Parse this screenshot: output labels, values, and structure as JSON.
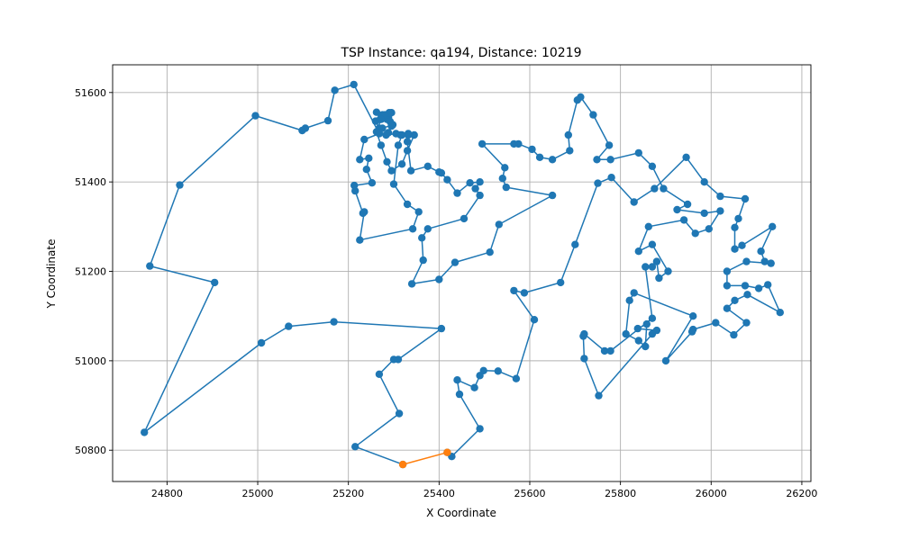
{
  "chart_data": {
    "type": "line",
    "title": "TSP Instance: qa194, Distance: 10219",
    "xlabel": "X Coordinate",
    "ylabel": "Y Coordinate",
    "xlim": [
      24680,
      26220
    ],
    "ylim": [
      50730,
      51662
    ],
    "xticks": [
      24800,
      25000,
      25200,
      25400,
      25600,
      25800,
      26000,
      26200
    ],
    "yticks": [
      50800,
      51000,
      51200,
      51400,
      51600
    ],
    "grid": true,
    "colors": {
      "tour": "#1f77b4",
      "closing": "#ff7f0e"
    },
    "series": [
      {
        "name": "",
        "color": "#1f77b4",
        "points": [
          [
            25418,
            50795
          ],
          [
            25428,
            50786
          ],
          [
            25490,
            50848
          ],
          [
            25445,
            50925
          ],
          [
            25440,
            50957
          ],
          [
            25478,
            50940
          ],
          [
            25490,
            50967
          ],
          [
            25498,
            50978
          ],
          [
            25530,
            50977
          ],
          [
            25570,
            50960
          ],
          [
            25610,
            51092
          ],
          [
            25565,
            51157
          ],
          [
            25588,
            51152
          ],
          [
            25668,
            51175
          ],
          [
            25700,
            51260
          ],
          [
            25750,
            51397
          ],
          [
            25780,
            51410
          ],
          [
            25830,
            51355
          ],
          [
            25875,
            51385
          ],
          [
            25945,
            51455
          ],
          [
            25985,
            51400
          ],
          [
            26020,
            51368
          ],
          [
            26075,
            51362
          ],
          [
            26060,
            51318
          ],
          [
            26052,
            51298
          ],
          [
            26052,
            51250
          ],
          [
            26068,
            51258
          ],
          [
            26135,
            51300
          ],
          [
            26110,
            51245
          ],
          [
            26118,
            51222
          ],
          [
            26132,
            51218
          ],
          [
            26078,
            51222
          ],
          [
            26035,
            51200
          ],
          [
            26035,
            51168
          ],
          [
            26075,
            51168
          ],
          [
            26105,
            51162
          ],
          [
            26125,
            51170
          ],
          [
            26152,
            51108
          ],
          [
            26080,
            51148
          ],
          [
            26052,
            51135
          ],
          [
            26035,
            51117
          ],
          [
            26078,
            51085
          ],
          [
            26050,
            51058
          ],
          [
            26010,
            51085
          ],
          [
            25960,
            51070
          ],
          [
            25958,
            51065
          ],
          [
            25900,
            51000
          ],
          [
            25960,
            51100
          ],
          [
            25830,
            51152
          ],
          [
            25820,
            51135
          ],
          [
            25812,
            51060
          ],
          [
            25840,
            51045
          ],
          [
            25855,
            51032
          ],
          [
            25858,
            51082
          ],
          [
            25838,
            51072
          ],
          [
            25880,
            51068
          ],
          [
            25870,
            51060
          ],
          [
            25752,
            50922
          ],
          [
            25720,
            51005
          ],
          [
            25718,
            51055
          ],
          [
            25720,
            51060
          ],
          [
            25765,
            51022
          ],
          [
            25778,
            51022
          ],
          [
            25870,
            51095
          ],
          [
            25855,
            51210
          ],
          [
            25870,
            51210
          ],
          [
            25880,
            51222
          ],
          [
            25885,
            51185
          ],
          [
            25905,
            51200
          ],
          [
            25870,
            51260
          ],
          [
            25840,
            51245
          ],
          [
            25862,
            51300
          ],
          [
            25940,
            51315
          ],
          [
            25965,
            51285
          ],
          [
            25995,
            51295
          ],
          [
            26020,
            51335
          ],
          [
            25985,
            51330
          ],
          [
            25925,
            51338
          ],
          [
            25948,
            51350
          ],
          [
            25895,
            51385
          ],
          [
            25870,
            51435
          ],
          [
            25840,
            51465
          ],
          [
            25778,
            51450
          ],
          [
            25748,
            51450
          ],
          [
            25775,
            51482
          ],
          [
            25740,
            51550
          ],
          [
            25712,
            51590
          ],
          [
            25705,
            51583
          ],
          [
            25685,
            51505
          ],
          [
            25688,
            51470
          ],
          [
            25650,
            51450
          ],
          [
            25622,
            51455
          ],
          [
            25605,
            51473
          ],
          [
            25575,
            51485
          ],
          [
            25565,
            51485
          ],
          [
            25495,
            51485
          ],
          [
            25545,
            51432
          ],
          [
            25540,
            51408
          ],
          [
            25548,
            51388
          ],
          [
            25650,
            51370
          ],
          [
            25532,
            51305
          ],
          [
            25512,
            51243
          ],
          [
            25435,
            51220
          ],
          [
            25400,
            51182
          ],
          [
            25340,
            51172
          ],
          [
            25365,
            51225
          ],
          [
            25362,
            51275
          ],
          [
            25375,
            51295
          ],
          [
            25455,
            51318
          ],
          [
            25490,
            51370
          ],
          [
            25480,
            51385
          ],
          [
            25490,
            51400
          ],
          [
            25468,
            51398
          ],
          [
            25440,
            51375
          ],
          [
            25418,
            51405
          ],
          [
            25405,
            51420
          ],
          [
            25400,
            51422
          ],
          [
            25375,
            51435
          ],
          [
            25338,
            51425
          ],
          [
            25330,
            51490
          ],
          [
            25332,
            51505
          ],
          [
            25315,
            51505
          ],
          [
            25305,
            51508
          ],
          [
            25283,
            51505
          ],
          [
            25288,
            51510
          ],
          [
            25298,
            51528
          ],
          [
            25275,
            51520
          ],
          [
            25268,
            51520
          ],
          [
            25260,
            51536
          ],
          [
            25270,
            51540
          ],
          [
            25262,
            51556
          ],
          [
            25275,
            51550
          ],
          [
            25288,
            51548
          ],
          [
            25282,
            51548
          ],
          [
            25285,
            51540
          ],
          [
            25292,
            51535
          ],
          [
            25295,
            51525
          ],
          [
            25295,
            51555
          ],
          [
            25290,
            51555
          ],
          [
            25280,
            51550
          ],
          [
            25272,
            51540
          ],
          [
            25262,
            51512
          ],
          [
            25272,
            51482
          ],
          [
            25285,
            51445
          ],
          [
            25295,
            51425
          ],
          [
            25318,
            51440
          ],
          [
            25330,
            51470
          ],
          [
            25345,
            51505
          ],
          [
            25332,
            51508
          ],
          [
            25318,
            51505
          ],
          [
            25310,
            51482
          ],
          [
            25300,
            51395
          ],
          [
            25330,
            51350
          ],
          [
            25355,
            51333
          ],
          [
            25342,
            51295
          ],
          [
            25225,
            51270
          ],
          [
            25235,
            51333
          ],
          [
            25232,
            51330
          ],
          [
            25215,
            51380
          ],
          [
            25213,
            51392
          ],
          [
            25252,
            51398
          ],
          [
            25240,
            51428
          ],
          [
            25245,
            51453
          ],
          [
            25225,
            51450
          ],
          [
            25235,
            51495
          ],
          [
            25268,
            51508
          ],
          [
            25212,
            51618
          ],
          [
            25170,
            51605
          ],
          [
            25155,
            51537
          ],
          [
            25105,
            51520
          ],
          [
            25098,
            51515
          ],
          [
            24995,
            51548
          ],
          [
            24828,
            51393
          ],
          [
            24762,
            51212
          ],
          [
            24905,
            51175
          ],
          [
            24750,
            50840
          ],
          [
            25008,
            51040
          ],
          [
            25068,
            51077
          ],
          [
            25168,
            51087
          ],
          [
            25405,
            51072
          ],
          [
            25310,
            51003
          ],
          [
            25300,
            51003
          ],
          [
            25268,
            50970
          ],
          [
            25312,
            50882
          ],
          [
            25215,
            50808
          ],
          [
            25320,
            50768
          ]
        ]
      },
      {
        "name": "",
        "color": "#ff7f0e",
        "points": [
          [
            25320,
            50768
          ],
          [
            25418,
            50795
          ]
        ]
      }
    ]
  }
}
